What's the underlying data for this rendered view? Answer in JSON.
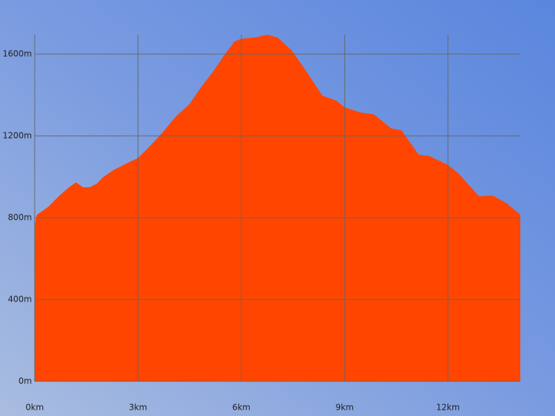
{
  "chart_data": {
    "type": "area",
    "color": "#ff4500",
    "grid": true,
    "x": [
      0,
      0.06,
      0.2,
      0.4,
      0.7,
      1.0,
      1.2,
      1.4,
      1.6,
      1.8,
      2.0,
      2.3,
      2.7,
      3.0,
      3.3,
      3.7,
      4.1,
      4.5,
      4.8,
      5.2,
      5.5,
      5.8,
      6.0,
      6.4,
      6.75,
      7.05,
      7.45,
      7.85,
      8.35,
      8.75,
      9.0,
      9.45,
      9.85,
      10.35,
      10.65,
      11.15,
      11.45,
      12.0,
      12.3,
      12.9,
      13.3,
      13.7,
      14.1
    ],
    "values": [
      763,
      814,
      830,
      854,
      905,
      949,
      973,
      949,
      949,
      966,
      1000,
      1034,
      1068,
      1092,
      1142,
      1214,
      1295,
      1356,
      1431,
      1519,
      1593,
      1661,
      1675,
      1681,
      1695,
      1681,
      1620,
      1525,
      1397,
      1373,
      1339,
      1315,
      1305,
      1237,
      1227,
      1108,
      1102,
      1058,
      1017,
      905,
      908,
      871,
      814
    ],
    "xlim": [
      0,
      14.1
    ],
    "ylim": [
      0,
      1695
    ],
    "xticks": [
      {
        "value": 0,
        "label": "0km"
      },
      {
        "value": 3,
        "label": "3km"
      },
      {
        "value": 6,
        "label": "6km"
      },
      {
        "value": 9,
        "label": "9km"
      },
      {
        "value": 12,
        "label": "12km"
      }
    ],
    "yticks": [
      {
        "value": 0,
        "label": "0m"
      },
      {
        "value": 400,
        "label": "400m"
      },
      {
        "value": 800,
        "label": "800m"
      },
      {
        "value": 1200,
        "label": "1200m"
      },
      {
        "value": 1600,
        "label": "1600m"
      }
    ]
  }
}
